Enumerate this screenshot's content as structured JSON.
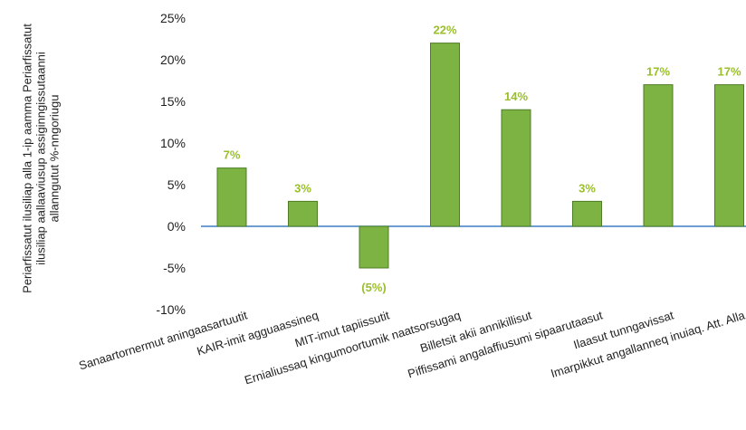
{
  "chart_data": {
    "type": "bar",
    "ylabel": [
      "Periarfissatut ilusiliap alla 1-ip aamma Periarfissatut",
      "ilusiliap aallaaviusup assiginngissutaanni",
      "allanngutut %-nngoriugu"
    ],
    "categories": [
      "Sanaartornermut aningaasartuutit",
      "KAIR-imit agguaassineq",
      "MIT-imut tapiissutit",
      "Ernialiussaq kingumoortumik naatsorsugaq",
      "Billetsit akii annikillisut",
      "Piffissami angalaffiusumi sipaarutaasut",
      "Ilaasut tunngavissat",
      "Imarpikkut angallanneq inuiaq. Att. Alla"
    ],
    "values": [
      7,
      3,
      -5,
      22,
      14,
      3,
      17,
      17
    ],
    "data_labels": [
      "7%",
      "3%",
      "(5%)",
      "22%",
      "14%",
      "3%",
      "17%",
      "17%"
    ],
    "yticks": [
      "25%",
      "20%",
      "15%",
      "10%",
      "5%",
      "0%",
      "-5%",
      "-10%"
    ],
    "ylim": [
      -10,
      25
    ],
    "grid": false,
    "colors": {
      "bar": "#7cb342",
      "bar_edge": "#4e7d26",
      "label": "#9abf2b",
      "axis": "#3b7fc4"
    }
  }
}
